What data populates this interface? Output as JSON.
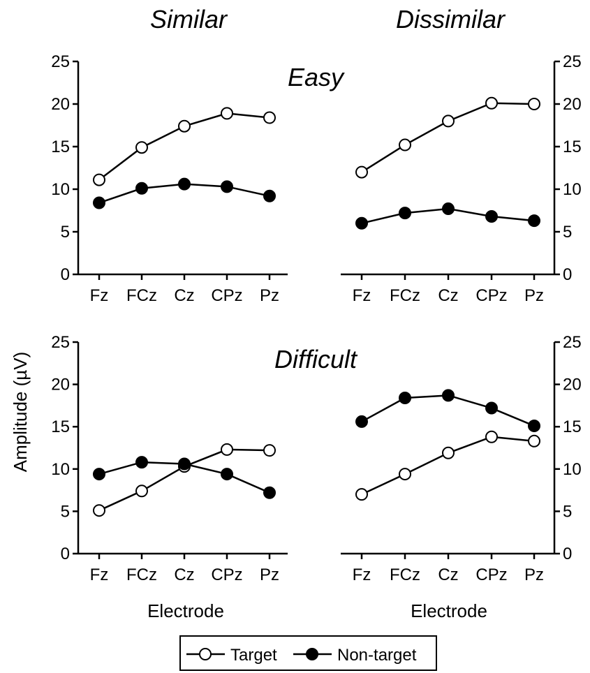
{
  "figure": {
    "column_titles": [
      "Similar",
      "Dissimilar"
    ],
    "row_titles": [
      "Easy",
      "Difficult"
    ],
    "ylabel": "Amplitude (µV)",
    "xlabel": "Electrode",
    "legend": {
      "target": "Target",
      "nontarget": "Non-target"
    }
  },
  "chart_data": [
    {
      "type": "line",
      "panel": "Easy / Similar",
      "categories": [
        "Fz",
        "FCz",
        "Cz",
        "CPz",
        "Pz"
      ],
      "ylim": [
        0,
        25
      ],
      "yticks": [
        0,
        5,
        10,
        15,
        20,
        25
      ],
      "series": [
        {
          "name": "Target",
          "marker": "open-circle",
          "values": [
            11.1,
            14.9,
            17.4,
            18.9,
            18.4
          ]
        },
        {
          "name": "Non-target",
          "marker": "filled-circle",
          "values": [
            8.4,
            10.1,
            10.6,
            10.3,
            9.2
          ]
        }
      ]
    },
    {
      "type": "line",
      "panel": "Easy / Dissimilar",
      "categories": [
        "Fz",
        "FCz",
        "Cz",
        "CPz",
        "Pz"
      ],
      "ylim": [
        0,
        25
      ],
      "yticks": [
        0,
        5,
        10,
        15,
        20,
        25
      ],
      "series": [
        {
          "name": "Target",
          "marker": "open-circle",
          "values": [
            12.0,
            15.2,
            18.0,
            20.1,
            20.0
          ]
        },
        {
          "name": "Non-target",
          "marker": "filled-circle",
          "values": [
            6.0,
            7.2,
            7.7,
            6.8,
            6.3
          ]
        }
      ]
    },
    {
      "type": "line",
      "panel": "Difficult / Similar",
      "categories": [
        "Fz",
        "FCz",
        "Cz",
        "CPz",
        "Pz"
      ],
      "ylim": [
        0,
        25
      ],
      "yticks": [
        0,
        5,
        10,
        15,
        20,
        25
      ],
      "series": [
        {
          "name": "Target",
          "marker": "open-circle",
          "values": [
            5.1,
            7.4,
            10.3,
            12.3,
            12.2
          ]
        },
        {
          "name": "Non-target",
          "marker": "filled-circle",
          "values": [
            9.4,
            10.8,
            10.6,
            9.4,
            7.2
          ]
        }
      ]
    },
    {
      "type": "line",
      "panel": "Difficult / Dissimilar",
      "categories": [
        "Fz",
        "FCz",
        "Cz",
        "CPz",
        "Pz"
      ],
      "ylim": [
        0,
        25
      ],
      "yticks": [
        0,
        5,
        10,
        15,
        20,
        25
      ],
      "series": [
        {
          "name": "Target",
          "marker": "open-circle",
          "values": [
            7.0,
            9.4,
            11.9,
            13.8,
            13.3
          ]
        },
        {
          "name": "Non-target",
          "marker": "filled-circle",
          "values": [
            15.6,
            18.4,
            18.7,
            17.2,
            15.1
          ]
        }
      ]
    }
  ]
}
